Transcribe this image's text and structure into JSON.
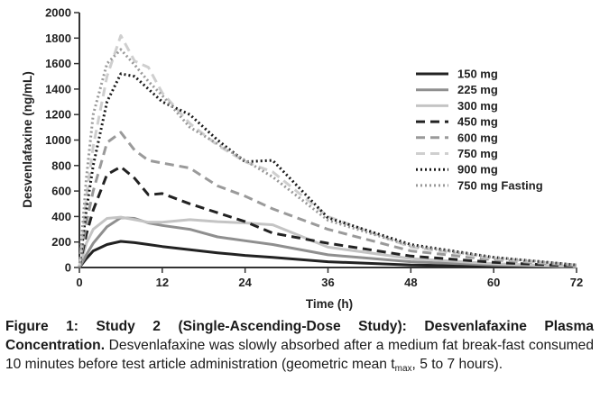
{
  "chart_data": {
    "type": "line",
    "title": "",
    "xlabel": "Time (h)",
    "ylabel": "Desvenlafaxine (ng/mL)",
    "xlim": [
      0,
      72
    ],
    "ylim": [
      0,
      2000
    ],
    "xticks": [
      0,
      12,
      24,
      36,
      48,
      60,
      72
    ],
    "yticks": [
      0,
      200,
      400,
      600,
      800,
      1000,
      1200,
      1400,
      1600,
      1800,
      2000
    ],
    "grid": false,
    "legend_position": "top-right",
    "series": [
      {
        "name": "150 mg",
        "color": "#222222",
        "dash": "solid",
        "width": 3,
        "x": [
          0,
          1,
          2,
          4,
          6,
          8,
          10,
          12,
          16,
          20,
          24,
          28,
          36,
          48,
          60,
          72
        ],
        "y": [
          0,
          70,
          130,
          180,
          205,
          195,
          180,
          165,
          140,
          115,
          95,
          80,
          45,
          20,
          10,
          3
        ]
      },
      {
        "name": "225 mg",
        "color": "#8f8f8f",
        "dash": "solid",
        "width": 3,
        "x": [
          0,
          1,
          2,
          4,
          6,
          8,
          10,
          12,
          16,
          20,
          24,
          28,
          36,
          48,
          60,
          72
        ],
        "y": [
          0,
          100,
          190,
          320,
          390,
          385,
          350,
          330,
          300,
          240,
          210,
          180,
          100,
          45,
          20,
          5
        ]
      },
      {
        "name": "300 mg",
        "color": "#c4c4c4",
        "dash": "solid",
        "width": 3,
        "x": [
          0,
          1,
          2,
          4,
          6,
          8,
          10,
          12,
          16,
          20,
          24,
          28,
          36,
          48,
          60,
          72
        ],
        "y": [
          0,
          190,
          300,
          385,
          395,
          375,
          355,
          355,
          375,
          360,
          350,
          335,
          160,
          70,
          30,
          8
        ]
      },
      {
        "name": "450 mg",
        "color": "#222222",
        "dash": "10,6",
        "width": 3,
        "x": [
          0,
          1,
          2,
          4,
          6,
          8,
          10,
          12,
          16,
          20,
          24,
          28,
          36,
          48,
          60,
          72
        ],
        "y": [
          0,
          260,
          450,
          730,
          790,
          700,
          570,
          580,
          500,
          430,
          360,
          270,
          190,
          90,
          40,
          10
        ]
      },
      {
        "name": "600 mg",
        "color": "#9a9a9a",
        "dash": "10,6",
        "width": 3,
        "x": [
          0,
          1,
          2,
          4,
          6,
          8,
          10,
          12,
          16,
          20,
          24,
          28,
          36,
          48,
          60,
          72
        ],
        "y": [
          0,
          350,
          600,
          980,
          1060,
          920,
          840,
          820,
          780,
          640,
          560,
          460,
          300,
          130,
          60,
          15
        ]
      },
      {
        "name": "750 mg",
        "color": "#cfcfcf",
        "dash": "10,6",
        "width": 3,
        "x": [
          0,
          1,
          2,
          4,
          6,
          8,
          10,
          12,
          16,
          20,
          24,
          28,
          36,
          48,
          60,
          72
        ],
        "y": [
          0,
          550,
          950,
          1500,
          1820,
          1620,
          1570,
          1370,
          1130,
          960,
          830,
          750,
          400,
          160,
          70,
          20
        ]
      },
      {
        "name": "900 mg",
        "color": "#1a1a1a",
        "dash": "2,3",
        "width": 3,
        "x": [
          0,
          1,
          2,
          4,
          6,
          8,
          10,
          12,
          16,
          20,
          24,
          28,
          36,
          48,
          60,
          72
        ],
        "y": [
          0,
          450,
          800,
          1300,
          1520,
          1500,
          1400,
          1300,
          1200,
          1000,
          830,
          840,
          390,
          180,
          80,
          20
        ]
      },
      {
        "name": "750 mg Fasting",
        "color": "#999999",
        "dash": "2,3",
        "width": 3,
        "x": [
          0,
          1,
          2,
          4,
          6,
          8,
          10,
          12,
          16,
          20,
          24,
          28,
          36,
          48,
          60,
          72
        ],
        "y": [
          0,
          700,
          1200,
          1600,
          1710,
          1590,
          1460,
          1350,
          1100,
          970,
          840,
          710,
          370,
          170,
          80,
          20
        ]
      }
    ]
  },
  "caption": {
    "figure_title": "Figure 1: Study 2 (Single-Ascending-Dose Study): Desvenlafaxine Plasma Concentration.",
    "text_before_sub": " Desvenlafaxine was slowly absorbed after a medium fat break-fast consumed 10 minutes before test article administration (geometric mean t",
    "subscript": "max",
    "text_after_sub": ", 5 to 7 hours)."
  }
}
